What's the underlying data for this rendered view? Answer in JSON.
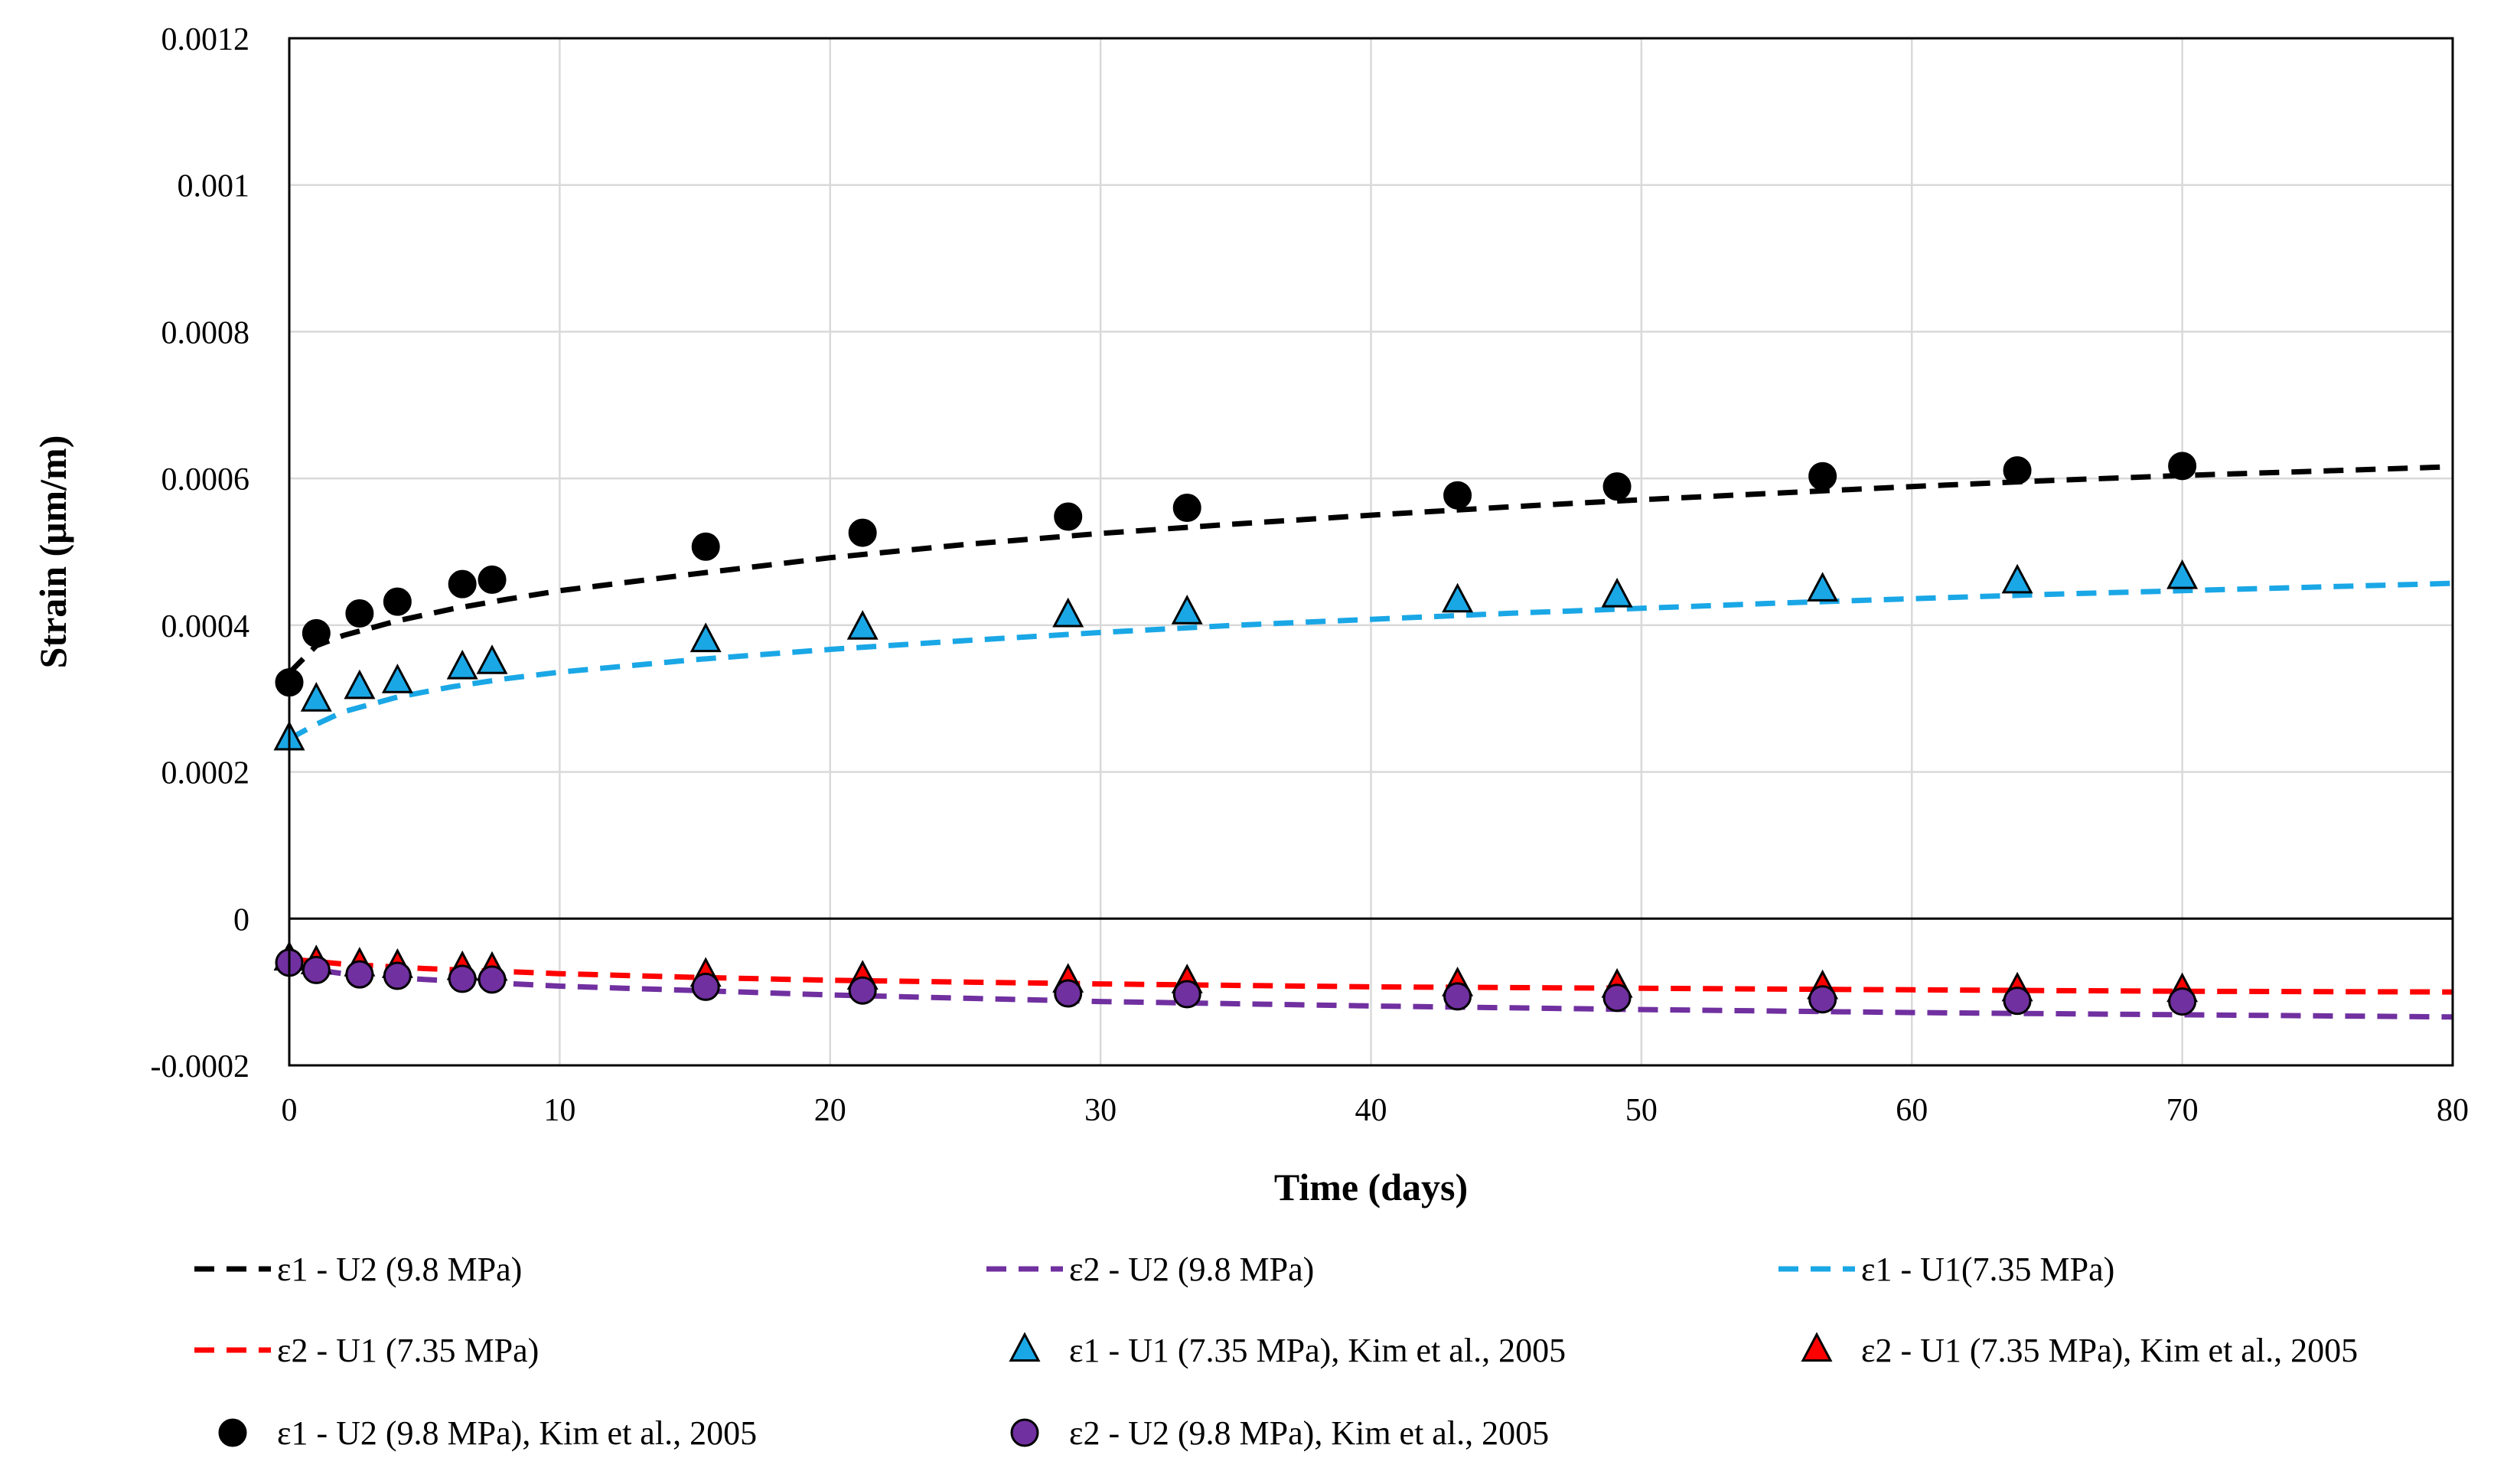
{
  "chart_data": {
    "type": "scatter",
    "title": "",
    "xlabel": "Time (days)",
    "ylabel": "Strain (μm/m)",
    "xlim": [
      0,
      80
    ],
    "ylim": [
      -0.0002,
      0.0012
    ],
    "x_ticks": [
      0,
      10,
      20,
      30,
      40,
      50,
      60,
      70,
      80
    ],
    "x_tick_labels": [
      "0",
      "10",
      "20",
      "30",
      "40",
      "50",
      "60",
      "70",
      "80"
    ],
    "y_ticks": [
      -0.0002,
      0,
      0.0002,
      0.0004,
      0.0006,
      0.0008,
      0.001,
      0.0012
    ],
    "y_tick_labels": [
      "-0.0002",
      "0",
      "0.0002",
      "0.0004",
      "0.0006",
      "0.0008",
      "0.001",
      "0.0012"
    ],
    "grid": true,
    "legend_position": "bottom",
    "series": [
      {
        "name": "ε1 - U2 (9.8 MPa)",
        "kind": "dashed-line",
        "color": "#000000",
        "x": [
          0,
          1,
          2,
          4,
          6,
          8,
          10,
          15,
          20,
          25,
          30,
          35,
          40,
          45,
          50,
          55,
          60,
          65,
          70,
          75,
          80
        ],
        "y": [
          0.000335,
          0.000372,
          0.000386,
          0.000406,
          0.000422,
          0.000435,
          0.000447,
          0.00047,
          0.000492,
          0.00051,
          0.000525,
          0.000538,
          0.00055,
          0.000561,
          0.000571,
          0.00058,
          0.000589,
          0.000597,
          0.000604,
          0.00061,
          0.000616
        ]
      },
      {
        "name": "ε2 - U2 (9.8 MPa)",
        "kind": "dashed-line",
        "color": "#7030a0",
        "x": [
          0,
          2,
          5,
          10,
          15,
          20,
          30,
          40,
          50,
          60,
          70,
          80
        ],
        "y": [
          -6.5e-05,
          -7.5e-05,
          -8.3e-05,
          -9.2e-05,
          -9.8e-05,
          -0.000104,
          -0.000113,
          -0.000119,
          -0.000124,
          -0.000128,
          -0.000131,
          -0.000134
        ]
      },
      {
        "name": "ε1 - U1(7.35 MPa)",
        "kind": "dashed-line",
        "color": "#1aa7e6",
        "x": [
          0,
          1,
          2,
          4,
          6,
          8,
          10,
          15,
          20,
          25,
          30,
          35,
          40,
          45,
          50,
          55,
          60,
          65,
          70,
          75,
          80
        ],
        "y": [
          0.000245,
          0.000265,
          0.000282,
          0.000302,
          0.000316,
          0.000327,
          0.000336,
          0.000353,
          0.000367,
          0.000379,
          0.00039,
          0.0004,
          0.000408,
          0.000416,
          0.000423,
          0.00043,
          0.000436,
          0.000442,
          0.000447,
          0.000452,
          0.000457
        ]
      },
      {
        "name": "ε2 - U1 (7.35 MPa)",
        "kind": "dashed-line",
        "color": "#ff0000",
        "x": [
          0,
          2,
          5,
          10,
          15,
          20,
          30,
          40,
          50,
          60,
          70,
          80
        ],
        "y": [
          -5.5e-05,
          -6.2e-05,
          -6.8e-05,
          -7.5e-05,
          -8e-05,
          -8.4e-05,
          -8.9e-05,
          -9.3e-05,
          -9.5e-05,
          -9.7e-05,
          -9.9e-05,
          -0.0001
        ]
      },
      {
        "name": "ε1 - U1 (7.35 MPa), Kim et al., 2005",
        "kind": "triangle",
        "color": "#1aa7e6",
        "x": [
          0,
          1,
          2.6,
          4,
          6.4,
          7.5,
          15.4,
          21.2,
          28.8,
          33.2,
          43.2,
          49.1,
          56.7,
          63.9,
          70
        ],
        "y": [
          0.000245,
          0.000298,
          0.000315,
          0.000323,
          0.000342,
          0.000349,
          0.000379,
          0.000396,
          0.000413,
          0.000417,
          0.000433,
          0.00044,
          0.000448,
          0.000459,
          0.000465
        ]
      },
      {
        "name": "ε2 - U1 (7.35 MPa), Kim et al., 2005",
        "kind": "triangle",
        "color": "#ff0000",
        "x": [
          0,
          1,
          2.6,
          4,
          6.4,
          7.5,
          15.4,
          21.2,
          28.8,
          33.2,
          43.2,
          49.1,
          56.7,
          63.9,
          70
        ],
        "y": [
          -5.5e-05,
          -6e-05,
          -6.3e-05,
          -6.5e-05,
          -6.8e-05,
          -6.9e-05,
          -7.7e-05,
          -8.1e-05,
          -8.5e-05,
          -8.6e-05,
          -9e-05,
          -9.2e-05,
          -9.4e-05,
          -9.7e-05,
          -9.8e-05
        ]
      },
      {
        "name": "ε1 - U2 (9.8 MPa), Kim et al., 2005",
        "kind": "circle",
        "color": "#000000",
        "x": [
          0,
          1,
          2.6,
          4,
          6.4,
          7.5,
          15.4,
          21.2,
          28.8,
          33.2,
          43.2,
          49.1,
          56.7,
          63.9,
          70
        ],
        "y": [
          0.000322,
          0.000389,
          0.000416,
          0.000432,
          0.000456,
          0.000462,
          0.000507,
          0.000526,
          0.000548,
          0.00056,
          0.000577,
          0.000589,
          0.000603,
          0.000611,
          0.000617
        ]
      },
      {
        "name": "ε2 - U2 (9.8 MPa), Kim et al., 2005",
        "kind": "circle",
        "color": "#7030a0",
        "x": [
          0,
          1,
          2.6,
          4,
          6.4,
          7.5,
          15.4,
          21.2,
          28.8,
          33.2,
          43.2,
          49.1,
          56.7,
          63.9,
          70
        ],
        "y": [
          -6e-05,
          -7e-05,
          -7.6e-05,
          -7.8e-05,
          -8.2e-05,
          -8.3e-05,
          -9.3e-05,
          -9.8e-05,
          -0.000102,
          -0.000103,
          -0.000106,
          -0.000108,
          -0.00011,
          -0.000112,
          -0.000113
        ]
      }
    ]
  }
}
